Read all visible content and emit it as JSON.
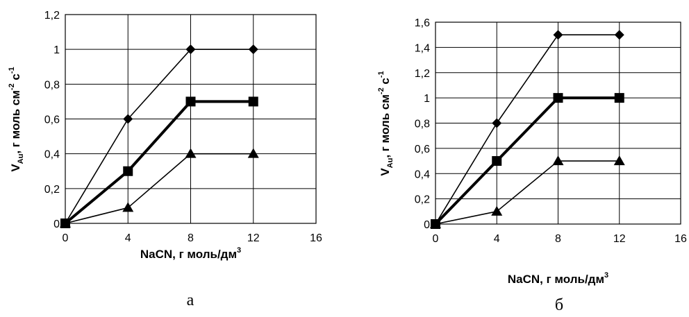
{
  "chart_data": [
    {
      "type": "line",
      "panel_label": "а",
      "xlabel_main": "NaCN, г моль/дм",
      "xlabel_sup": "3",
      "ylabel": {
        "v": "V",
        "sub": "Au",
        "text1": ", г моль см",
        "sup1": "-2",
        "text2": " с",
        "sup2": "-1"
      },
      "xlim": [
        0,
        16
      ],
      "xticks": [
        "0",
        "4",
        "8",
        "12",
        "16"
      ],
      "ylim": [
        0,
        1.2
      ],
      "yticks": [
        "0",
        "0,2",
        "0,4",
        "0,6",
        "0,8",
        "1",
        "1,2"
      ],
      "grid": true,
      "x": [
        0,
        4,
        8,
        12
      ],
      "series": [
        {
          "marker": "diamond",
          "line": "thin",
          "values": [
            0,
            0.6,
            1.0,
            1.0
          ]
        },
        {
          "marker": "square",
          "line": "thick",
          "values": [
            0,
            0.3,
            0.7,
            0.7
          ]
        },
        {
          "marker": "triangle",
          "line": "thin",
          "values": [
            0,
            0.09,
            0.4,
            0.4
          ]
        }
      ]
    },
    {
      "type": "line",
      "panel_label": "б",
      "xlabel_main": "NaCN, г моль/дм",
      "xlabel_sup": "3",
      "ylabel": {
        "v": "V",
        "sub": "Au",
        "text1": ", г моль см",
        "sup1": "-2",
        "text2": " с",
        "sup2": "-1"
      },
      "xlim": [
        0,
        16
      ],
      "xticks": [
        "0",
        "4",
        "8",
        "12",
        "16"
      ],
      "ylim": [
        0,
        1.6
      ],
      "yticks": [
        "0",
        "0,2",
        "0,4",
        "0,6",
        "0,8",
        "1",
        "1,2",
        "1,4",
        "1,6"
      ],
      "grid": true,
      "x": [
        0,
        4,
        8,
        12
      ],
      "series": [
        {
          "marker": "diamond",
          "line": "thin",
          "values": [
            0,
            0.8,
            1.5,
            1.5
          ]
        },
        {
          "marker": "square",
          "line": "thick",
          "values": [
            0,
            0.5,
            1.0,
            1.0
          ]
        },
        {
          "marker": "triangle",
          "line": "thin",
          "values": [
            0,
            0.1,
            0.5,
            0.5
          ]
        }
      ]
    }
  ]
}
